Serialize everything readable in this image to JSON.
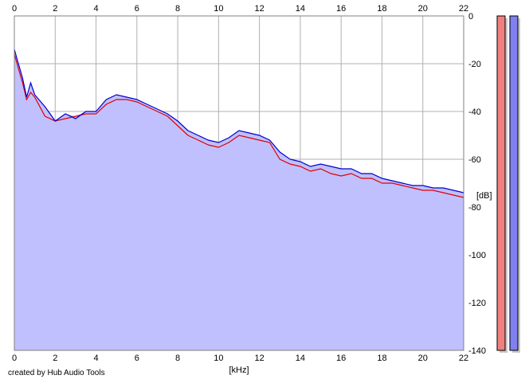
{
  "chart_data": {
    "type": "area",
    "xlabel": "[kHz]",
    "ylabel": "[dB]",
    "xlim": [
      0,
      22
    ],
    "ylim": [
      -140,
      0
    ],
    "x_ticks": [
      "0",
      "2",
      "4",
      "6",
      "8",
      "10",
      "12",
      "14",
      "16",
      "18",
      "20",
      "22"
    ],
    "y_ticks": [
      "0",
      "-20",
      "-40",
      "-60",
      "-80",
      "-100",
      "-120",
      "-140"
    ],
    "grid": true,
    "x": [
      0,
      0.2,
      0.4,
      0.6,
      0.8,
      1,
      1.5,
      2,
      2.5,
      3,
      3.5,
      4,
      4.5,
      5,
      5.5,
      6,
      6.5,
      7,
      7.5,
      8,
      8.5,
      9,
      9.5,
      10,
      10.5,
      11,
      11.5,
      12,
      12.5,
      13,
      13.5,
      14,
      14.5,
      15,
      15.5,
      16,
      16.5,
      17,
      17.5,
      18,
      18.5,
      19,
      19.5,
      20,
      20.5,
      21,
      21.5,
      22
    ],
    "series": [
      {
        "color": "#e00000",
        "values": [
          -16,
          -22,
          -28,
          -35,
          -32,
          -34,
          -42,
          -44,
          -43,
          -42,
          -41,
          -41,
          -37,
          -35,
          -35,
          -36,
          -38,
          -40,
          -42,
          -46,
          -50,
          -52,
          -54,
          -55,
          -53,
          -50,
          -51,
          -52,
          -53,
          -60,
          -62,
          -63,
          -65,
          -64,
          -66,
          -67,
          -66,
          -68,
          -68,
          -70,
          -70,
          -71,
          -72,
          -73,
          -73,
          -74,
          -75,
          -76
        ]
      },
      {
        "color": "#0000d0",
        "values": [
          -14,
          -20,
          -26,
          -34,
          -28,
          -33,
          -38,
          -44,
          -41,
          -43,
          -40,
          -40,
          -35,
          -33,
          -34,
          -35,
          -37,
          -39,
          -41,
          -44,
          -48,
          -50,
          -52,
          -53,
          -51,
          -48,
          -49,
          -50,
          -52,
          -57,
          -60,
          -61,
          -63,
          -62,
          -63,
          -64,
          -64,
          -66,
          -66,
          -68,
          -69,
          -70,
          -71,
          -71,
          -72,
          -72,
          -73,
          -74
        ]
      }
    ],
    "meters": [
      {
        "color": "#f08080",
        "level": 1.0
      },
      {
        "color": "#8080f0",
        "level": 1.0
      }
    ],
    "fill_color": "#c0c0ff"
  },
  "credit": "created by Hub Audio Tools"
}
